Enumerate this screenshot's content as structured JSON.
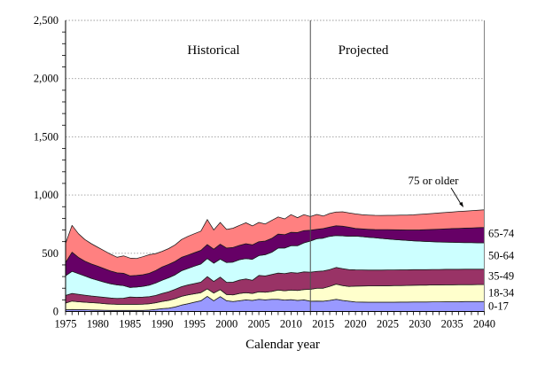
{
  "chart_data": {
    "type": "area",
    "stacked": true,
    "title": "",
    "xlabel": "Calendar year",
    "ylabel": "",
    "ylim": [
      0,
      2500
    ],
    "yticks": [
      0,
      500,
      1000,
      1500,
      2000,
      2500
    ],
    "ytick_labels": [
      "0",
      "500",
      "1,000",
      "1,500",
      "2,000",
      "2,500"
    ],
    "xtick_years": [
      1975,
      1980,
      1985,
      1990,
      1995,
      2000,
      2005,
      2010,
      2015,
      2020,
      2025,
      2030,
      2035,
      2040
    ],
    "divider_year": 2013,
    "region_labels": {
      "historical": "Historical",
      "projected": "Projected"
    },
    "series_pointer_label": "75 or older",
    "series_edge_labels": [
      "65-74",
      "50-64",
      "35-49",
      "18-34",
      "0-17"
    ],
    "grid": "dotted horizontal gridlines at each 500",
    "legend_position": "labels at right edge of plot",
    "x": [
      1975,
      1976,
      1977,
      1978,
      1979,
      1980,
      1981,
      1982,
      1983,
      1984,
      1985,
      1986,
      1987,
      1988,
      1989,
      1990,
      1991,
      1992,
      1993,
      1994,
      1995,
      1996,
      1997,
      1998,
      1999,
      2000,
      2001,
      2002,
      2003,
      2004,
      2005,
      2006,
      2007,
      2008,
      2009,
      2010,
      2011,
      2012,
      2013,
      2014,
      2015,
      2016,
      2017,
      2018,
      2019,
      2020,
      2021,
      2022,
      2023,
      2024,
      2025,
      2026,
      2027,
      2028,
      2029,
      2030,
      2031,
      2032,
      2033,
      2034,
      2035,
      2036,
      2037,
      2038,
      2039,
      2040
    ],
    "series": [
      {
        "name": "0-17",
        "color": "#9999FF",
        "values": [
          15,
          17,
          16,
          15,
          14,
          12,
          11,
          10,
          9,
          9,
          9,
          9,
          10,
          12,
          18,
          24,
          29,
          39,
          55,
          67,
          80,
          92,
          130,
          92,
          128,
          92,
          85,
          92,
          100,
          95,
          105,
          100,
          105,
          105,
          98,
          102,
          95,
          100,
          88,
          90,
          88,
          95,
          105,
          95,
          88,
          82,
          81,
          80,
          80,
          80,
          80,
          80,
          81,
          81,
          82,
          82,
          82,
          83,
          83,
          84,
          84,
          84,
          85,
          85,
          85,
          85
        ]
      },
      {
        "name": "18-34",
        "color": "#FFFFCC",
        "values": [
          57,
          73,
          68,
          65,
          62,
          61,
          57,
          54,
          53,
          53,
          53,
          53,
          53,
          54,
          57,
          63,
          66,
          71,
          75,
          75,
          72,
          70,
          65,
          66,
          60,
          53,
          57,
          63,
          62,
          60,
          65,
          65,
          67,
          80,
          80,
          83,
          85,
          88,
          102,
          110,
          112,
          120,
          130,
          127,
          127,
          136,
          138,
          140,
          140,
          141,
          141,
          142,
          142,
          143,
          143,
          144,
          145,
          145,
          145,
          145,
          145,
          146,
          145,
          145,
          146,
          146
        ]
      },
      {
        "name": "35-49",
        "color": "#993366",
        "values": [
          66,
          65,
          64,
          60,
          57,
          55,
          54,
          52,
          50,
          52,
          63,
          60,
          60,
          62,
          63,
          68,
          75,
          80,
          83,
          86,
          88,
          90,
          105,
          100,
          107,
          105,
          110,
          115,
          118,
          113,
          140,
          140,
          146,
          145,
          147,
          150,
          150,
          152,
          148,
          145,
          148,
          145,
          143,
          146,
          145,
          140,
          138,
          136,
          136,
          135,
          136,
          135,
          135,
          134,
          134,
          134,
          133,
          133,
          133,
          133,
          133,
          132,
          133,
          133,
          132,
          132
        ]
      },
      {
        "name": "50-64",
        "color": "#CCFFFF",
        "values": [
          169,
          190,
          177,
          165,
          152,
          140,
          130,
          122,
          116,
          108,
          81,
          88,
          93,
          98,
          107,
          114,
          120,
          125,
          137,
          142,
          150,
          156,
          155,
          157,
          155,
          170,
          173,
          175,
          175,
          180,
          170,
          183,
          190,
          215,
          220,
          230,
          235,
          250,
          267,
          280,
          282,
          285,
          274,
          282,
          286,
          290,
          286,
          282,
          277,
          272,
          266,
          261,
          256,
          252,
          248,
          244,
          241,
          238,
          236,
          233,
          232,
          231,
          229,
          228,
          227,
          227
        ]
      },
      {
        "name": "65-74",
        "color": "#660066",
        "values": [
          114,
          164,
          140,
          127,
          123,
          122,
          116,
          110,
          104,
          106,
          101,
          100,
          100,
          102,
          107,
          114,
          115,
          115,
          115,
          115,
          115,
          117,
          120,
          120,
          128,
          125,
          125,
          123,
          127,
          124,
          120,
          117,
          120,
          120,
          115,
          115,
          113,
          105,
          93,
          81,
          82,
          80,
          84,
          83,
          78,
          65,
          66,
          68,
          71,
          75,
          80,
          84,
          87,
          90,
          93,
          97,
          102,
          106,
          110,
          115,
          118,
          121,
          124,
          127,
          130,
          132
        ]
      },
      {
        "name": "75 or older",
        "color": "#FF8080",
        "values": [
          164,
          231,
          203,
          186,
          174,
          162,
          154,
          144,
          134,
          150,
          152,
          145,
          154,
          160,
          146,
          134,
          135,
          142,
          153,
          160,
          163,
          165,
          215,
          165,
          187,
          160,
          165,
          172,
          180,
          163,
          165,
          147,
          154,
          147,
          135,
          152,
          128,
          137,
          117,
          127,
          108,
          117,
          118,
          123,
          122,
          125,
          122,
          122,
          122,
          122,
          123,
          124,
          126,
          128,
          130,
          133,
          135,
          137,
          139,
          140,
          143,
          145,
          146,
          148,
          150,
          151
        ]
      }
    ]
  }
}
